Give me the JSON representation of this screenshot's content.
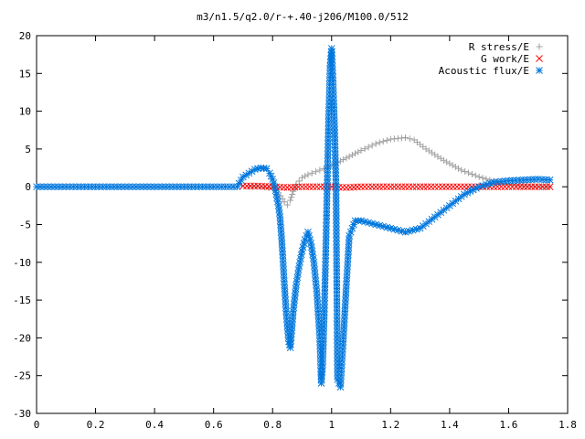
{
  "chart_data": {
    "type": "scatter",
    "title": "m3/n1.5/q2.0/r-+.40-j206/M100.0/512",
    "xlim": [
      0,
      1.8
    ],
    "ylim": [
      -30,
      20
    ],
    "xticks": [
      "0",
      "0.2",
      "0.4",
      "0.6",
      "0.8",
      "1",
      "1.2",
      "1.4",
      "1.6",
      "1.8"
    ],
    "yticks": [
      "20",
      "15",
      "10",
      "5",
      "0",
      "-5",
      "-10",
      "-15",
      "-20",
      "-25",
      "-30"
    ],
    "grid": false,
    "legend_position": "top-right",
    "series": [
      {
        "name": "R stress/E",
        "marker": "+",
        "color": "#a0a0a0",
        "x": [
          0.72,
          0.76,
          0.8,
          0.82,
          0.84,
          0.85,
          0.86,
          0.87,
          0.88,
          0.9,
          0.92,
          0.96,
          1.0,
          1.05,
          1.1,
          1.15,
          1.2,
          1.25,
          1.28,
          1.32,
          1.38,
          1.44,
          1.5,
          1.56,
          1.6,
          1.65,
          1.7,
          1.74
        ],
        "y": [
          0.0,
          0.0,
          -0.2,
          -0.8,
          -2.0,
          -2.4,
          -1.8,
          -0.6,
          0.3,
          1.2,
          1.6,
          2.2,
          2.8,
          3.8,
          4.8,
          5.7,
          6.3,
          6.5,
          6.2,
          5.0,
          3.5,
          2.2,
          1.3,
          0.6,
          0.3,
          0.1,
          0.0,
          0.0
        ]
      },
      {
        "name": "G work/E",
        "marker": "x",
        "color": "#ff0000",
        "x": [
          0.7,
          0.75,
          0.8,
          0.85,
          0.9,
          0.95,
          1.0,
          1.05,
          1.1,
          1.2,
          1.3,
          1.4,
          1.5,
          1.6,
          1.74
        ],
        "y": [
          0.1,
          0.1,
          0.0,
          -0.1,
          0.0,
          0.0,
          0.0,
          -0.1,
          0.0,
          0.0,
          0.0,
          0.0,
          0.0,
          0.0,
          0.0
        ]
      },
      {
        "name": "Acoustic flux/E",
        "marker": "*",
        "color": "#0077dd",
        "x": [
          0.0,
          0.1,
          0.2,
          0.3,
          0.4,
          0.5,
          0.6,
          0.68,
          0.7,
          0.72,
          0.74,
          0.76,
          0.78,
          0.79,
          0.8,
          0.81,
          0.82,
          0.825,
          0.83,
          0.835,
          0.84,
          0.845,
          0.85,
          0.855,
          0.86,
          0.865,
          0.87,
          0.88,
          0.89,
          0.9,
          0.91,
          0.92,
          0.93,
          0.94,
          0.95,
          0.96,
          0.965,
          0.97,
          0.975,
          0.98,
          0.985,
          0.99,
          0.995,
          1.0,
          1.005,
          1.01,
          1.015,
          1.02,
          1.03,
          1.04,
          1.05,
          1.06,
          1.08,
          1.1,
          1.15,
          1.2,
          1.25,
          1.3,
          1.35,
          1.4,
          1.45,
          1.5,
          1.55,
          1.6,
          1.65,
          1.7,
          1.74
        ],
        "y": [
          0,
          0,
          0,
          0,
          0,
          0,
          0,
          0,
          1.3,
          1.8,
          2.3,
          2.5,
          2.4,
          1.8,
          1.0,
          -0.5,
          -2.5,
          -4.0,
          -6.5,
          -9.5,
          -13.0,
          -16.0,
          -18.5,
          -20.5,
          -21.3,
          -19.0,
          -16.5,
          -13.0,
          -10.5,
          -8.5,
          -7.0,
          -6.0,
          -7.5,
          -10.0,
          -14.0,
          -20.0,
          -26.0,
          -23.5,
          -17.0,
          -9.0,
          0.0,
          9.0,
          16.0,
          18.3,
          14.0,
          8.0,
          0.0,
          -25.5,
          -26.5,
          -20.0,
          -13.0,
          -6.5,
          -4.5,
          -4.5,
          -5.0,
          -5.5,
          -6.0,
          -5.5,
          -4.0,
          -2.5,
          -1.0,
          0.0,
          0.6,
          0.8,
          0.9,
          1.0,
          0.9
        ]
      }
    ]
  }
}
